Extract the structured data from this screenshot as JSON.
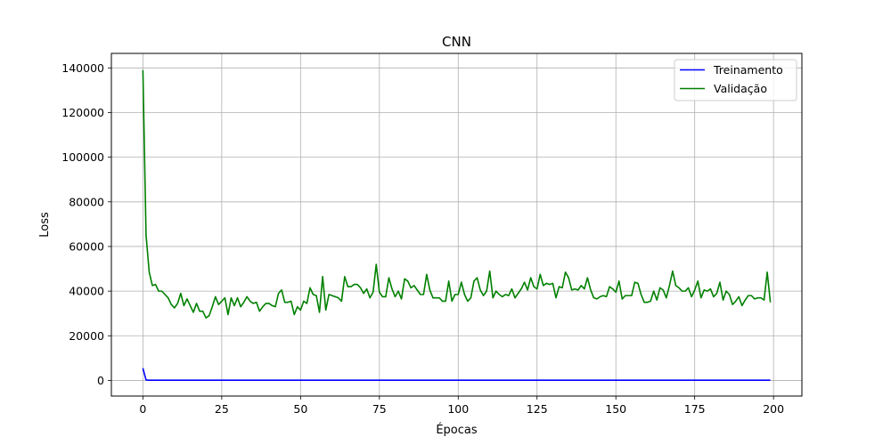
{
  "chart_data": {
    "type": "line",
    "title": "CNN",
    "xlabel": "Épocas",
    "ylabel": "Loss",
    "xlim": [
      -10,
      209
    ],
    "ylim": [
      -7000,
      146500
    ],
    "xticks": [
      0,
      25,
      50,
      75,
      100,
      125,
      150,
      175,
      200
    ],
    "yticks": [
      0,
      20000,
      40000,
      60000,
      80000,
      100000,
      120000,
      140000
    ],
    "grid": true,
    "legend_position": "top-right",
    "series": [
      {
        "name": "Treinamento",
        "color": "#0000ff",
        "x": [
          0,
          1,
          2,
          199
        ],
        "values": [
          5500,
          200,
          120,
          100
        ]
      },
      {
        "name": "Validação",
        "color": "#008000",
        "x": [
          0,
          1,
          2,
          3,
          4,
          5,
          6,
          7,
          8,
          9,
          10,
          11,
          12,
          13,
          14,
          15,
          16,
          17,
          18,
          19,
          20,
          21,
          22,
          23,
          24,
          25,
          26,
          27,
          28,
          29,
          30,
          31,
          32,
          33,
          34,
          35,
          36,
          37,
          38,
          39,
          40,
          41,
          42,
          43,
          44,
          45,
          46,
          47,
          48,
          49,
          50,
          51,
          52,
          53,
          54,
          55,
          56,
          57,
          58,
          59,
          60,
          61,
          62,
          63,
          64,
          65,
          66,
          67,
          68,
          69,
          70,
          71,
          72,
          73,
          74,
          75,
          76,
          77,
          78,
          79,
          80,
          81,
          82,
          83,
          84,
          85,
          86,
          87,
          88,
          89,
          90,
          91,
          92,
          93,
          94,
          95,
          96,
          97,
          98,
          99,
          100,
          101,
          102,
          103,
          104,
          105,
          106,
          107,
          108,
          109,
          110,
          111,
          112,
          113,
          114,
          115,
          116,
          117,
          118,
          119,
          120,
          121,
          122,
          123,
          124,
          125,
          126,
          127,
          128,
          129,
          130,
          131,
          132,
          133,
          134,
          135,
          136,
          137,
          138,
          139,
          140,
          141,
          142,
          143,
          144,
          145,
          146,
          147,
          148,
          149,
          150,
          151,
          152,
          153,
          154,
          155,
          156,
          157,
          158,
          159,
          160,
          161,
          162,
          163,
          164,
          165,
          166,
          167,
          168,
          169,
          170,
          171,
          172,
          173,
          174,
          175,
          176,
          177,
          178,
          179,
          180,
          181,
          182,
          183,
          184,
          185,
          186,
          187,
          188,
          189,
          190,
          191,
          192,
          193,
          194,
          195,
          196,
          197,
          198,
          199
        ],
        "values": [
          139000,
          65000,
          48500,
          42500,
          43000,
          40000,
          40000,
          38500,
          37000,
          34000,
          32500,
          34500,
          39000,
          33500,
          36500,
          33500,
          30500,
          34500,
          31000,
          31000,
          28000,
          29000,
          33000,
          37500,
          34000,
          35500,
          37000,
          29500,
          37000,
          33500,
          37000,
          33000,
          35000,
          37500,
          35500,
          34500,
          35000,
          31000,
          33000,
          34500,
          34500,
          33500,
          33000,
          39000,
          40500,
          35000,
          35000,
          35500,
          29500,
          33000,
          31500,
          35500,
          34500,
          41500,
          38500,
          38000,
          30500,
          46500,
          31500,
          38500,
          38000,
          37500,
          37000,
          35500,
          46500,
          42000,
          42000,
          43000,
          43000,
          41500,
          39000,
          41000,
          37000,
          39500,
          52000,
          39500,
          37500,
          37500,
          46000,
          41000,
          37500,
          40000,
          36500,
          45500,
          44500,
          41500,
          42500,
          40500,
          38500,
          38500,
          47500,
          40500,
          37000,
          37000,
          37000,
          35500,
          35500,
          44500,
          35500,
          38500,
          38500,
          44000,
          38500,
          35500,
          37000,
          44500,
          46000,
          40500,
          38000,
          40000,
          49000,
          37000,
          40000,
          38500,
          37500,
          38500,
          38000,
          41000,
          37000,
          39000,
          41000,
          44000,
          40500,
          46000,
          42000,
          41000,
          47500,
          42500,
          43500,
          43000,
          43500,
          37000,
          42000,
          41500,
          48500,
          46000,
          40500,
          41000,
          40500,
          42500,
          41000,
          46000,
          40500,
          37000,
          36500,
          37500,
          38000,
          37500,
          42000,
          41000,
          39500,
          44500,
          36500,
          38000,
          38000,
          38000,
          44000,
          43500,
          38500,
          35000,
          35000,
          35500,
          40000,
          36000,
          41500,
          40500,
          37000,
          42500,
          49000,
          42500,
          41500,
          40000,
          40000,
          41500,
          37500,
          40500,
          44500,
          37000,
          40500,
          40000,
          41000,
          37500,
          39000,
          44000,
          36000,
          40000,
          38500,
          34000,
          35500,
          37500,
          33500,
          36000,
          38000,
          38000,
          36500,
          37000,
          37000,
          36000,
          48500,
          35000
        ]
      }
    ]
  }
}
